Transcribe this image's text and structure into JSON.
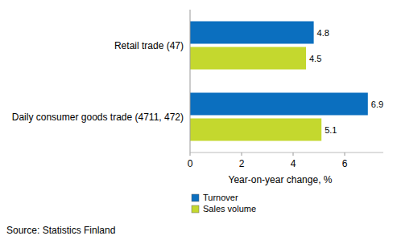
{
  "chart_data": {
    "type": "bar",
    "orientation": "horizontal",
    "categories": [
      "Retail trade (47)",
      "Daily consumer goods trade (4711, 472)"
    ],
    "series": [
      {
        "name": "Turnover",
        "color": "#0b6fbf",
        "values": [
          4.8,
          6.9
        ]
      },
      {
        "name": "Sales volume",
        "color": "#c4d82e",
        "values": [
          4.5,
          5.1
        ]
      }
    ],
    "xlim": [
      0,
      7.5
    ],
    "xticks": [
      0,
      2,
      4,
      6
    ],
    "x_label": "Year-on-year change, %",
    "source": "Source: Statistics Finland",
    "data_labels": true,
    "grid": false,
    "legend": "bottom"
  }
}
